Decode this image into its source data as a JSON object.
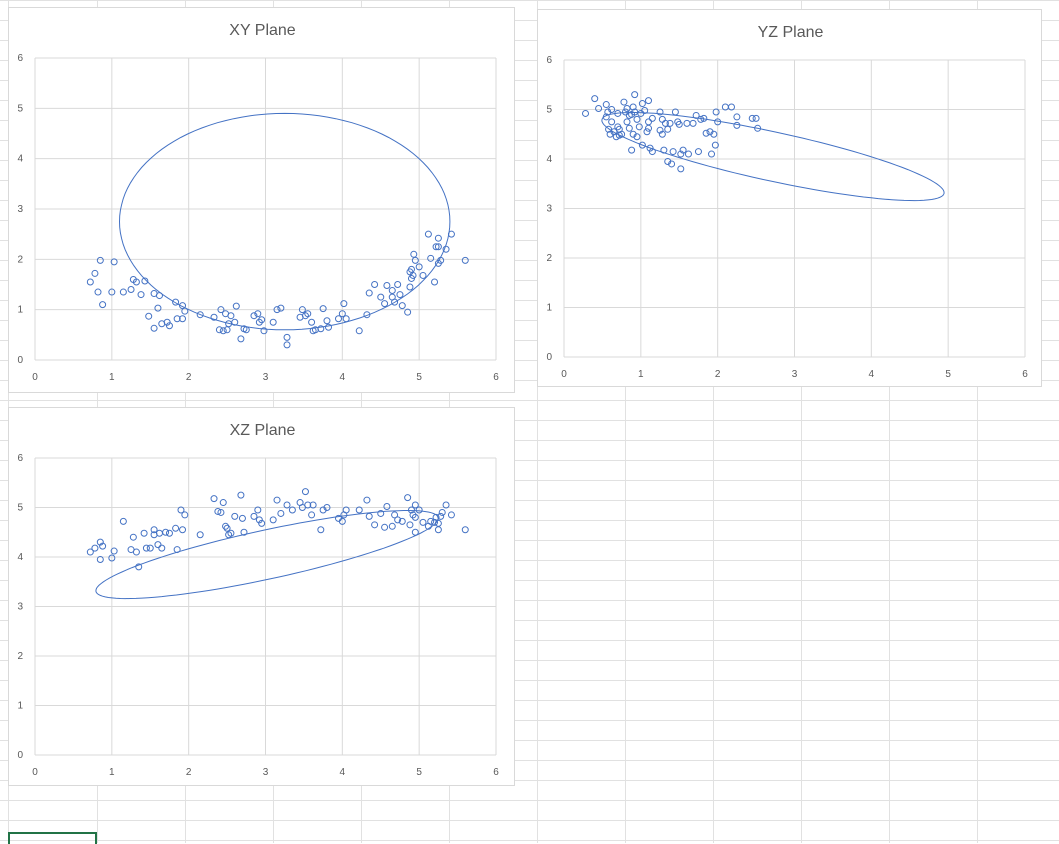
{
  "colors": {
    "series": "#4472c4",
    "grid": "#d9d9d9",
    "text": "#595959",
    "cell_border": "#e1e1e1",
    "selection": "#217346"
  },
  "chart_data": [
    {
      "type": "scatter",
      "title": "XY Plane",
      "xlim": [
        0,
        6
      ],
      "ylim": [
        0,
        6
      ],
      "xticks": [
        "0",
        "1",
        "2",
        "3",
        "4",
        "5",
        "6"
      ],
      "yticks": [
        "0",
        "1",
        "2",
        "3",
        "4",
        "5",
        "6"
      ],
      "grid": true,
      "ellipse": {
        "cx": 3.25,
        "cy": 2.75,
        "a": 2.15,
        "b": 2.15,
        "angle_deg": 3,
        "x_radius": 2.15,
        "y_radius": 2.15
      },
      "ellipse_ry": 2.15,
      "points": [
        [
          0.72,
          1.55
        ],
        [
          0.78,
          1.72
        ],
        [
          0.85,
          1.98
        ],
        [
          0.88,
          1.1
        ],
        [
          0.82,
          1.35
        ],
        [
          1.0,
          1.35
        ],
        [
          1.03,
          1.95
        ],
        [
          1.15,
          1.35
        ],
        [
          1.25,
          1.4
        ],
        [
          1.28,
          1.6
        ],
        [
          1.32,
          1.55
        ],
        [
          1.38,
          1.3
        ],
        [
          1.43,
          1.57
        ],
        [
          1.48,
          0.87
        ],
        [
          1.55,
          1.32
        ],
        [
          1.55,
          0.63
        ],
        [
          1.6,
          1.03
        ],
        [
          1.62,
          1.28
        ],
        [
          1.65,
          0.72
        ],
        [
          1.72,
          0.75
        ],
        [
          1.75,
          0.68
        ],
        [
          1.83,
          1.15
        ],
        [
          1.85,
          0.82
        ],
        [
          1.92,
          1.08
        ],
        [
          1.92,
          0.82
        ],
        [
          1.95,
          0.97
        ],
        [
          2.15,
          0.9
        ],
        [
          2.33,
          0.85
        ],
        [
          2.4,
          0.6
        ],
        [
          2.42,
          1.0
        ],
        [
          2.45,
          0.58
        ],
        [
          2.48,
          0.92
        ],
        [
          2.5,
          0.6
        ],
        [
          2.52,
          0.72
        ],
        [
          2.55,
          0.88
        ],
        [
          2.6,
          0.75
        ],
        [
          2.62,
          1.07
        ],
        [
          2.68,
          0.42
        ],
        [
          2.72,
          0.62
        ],
        [
          2.75,
          0.6
        ],
        [
          2.85,
          0.88
        ],
        [
          2.9,
          0.92
        ],
        [
          2.92,
          0.75
        ],
        [
          2.95,
          0.8
        ],
        [
          2.98,
          0.58
        ],
        [
          3.1,
          0.75
        ],
        [
          3.15,
          1.0
        ],
        [
          3.2,
          1.03
        ],
        [
          3.28,
          0.45
        ],
        [
          3.28,
          0.3
        ],
        [
          3.45,
          0.85
        ],
        [
          3.48,
          1.0
        ],
        [
          3.52,
          0.88
        ],
        [
          3.55,
          0.92
        ],
        [
          3.6,
          0.75
        ],
        [
          3.62,
          0.58
        ],
        [
          3.65,
          0.6
        ],
        [
          3.72,
          0.62
        ],
        [
          3.75,
          1.02
        ],
        [
          3.8,
          0.78
        ],
        [
          3.82,
          0.65
        ],
        [
          3.95,
          0.82
        ],
        [
          4.0,
          0.92
        ],
        [
          4.02,
          1.12
        ],
        [
          4.05,
          0.82
        ],
        [
          4.22,
          0.58
        ],
        [
          4.32,
          0.9
        ],
        [
          4.35,
          1.33
        ],
        [
          4.42,
          1.5
        ],
        [
          4.5,
          1.25
        ],
        [
          4.55,
          1.12
        ],
        [
          4.58,
          1.48
        ],
        [
          4.65,
          1.38
        ],
        [
          4.65,
          1.25
        ],
        [
          4.68,
          1.15
        ],
        [
          4.72,
          1.5
        ],
        [
          4.75,
          1.3
        ],
        [
          4.78,
          1.08
        ],
        [
          4.85,
          0.95
        ],
        [
          4.88,
          1.75
        ],
        [
          4.88,
          1.45
        ],
        [
          4.9,
          1.8
        ],
        [
          4.92,
          1.68
        ],
        [
          4.93,
          2.1
        ],
        [
          4.95,
          1.98
        ],
        [
          5.0,
          1.85
        ],
        [
          5.05,
          1.68
        ],
        [
          5.12,
          2.5
        ],
        [
          5.15,
          2.02
        ],
        [
          5.2,
          1.55
        ],
        [
          5.22,
          2.25
        ],
        [
          5.25,
          1.92
        ],
        [
          5.25,
          2.42
        ],
        [
          5.28,
          1.98
        ],
        [
          5.35,
          2.2
        ],
        [
          5.42,
          2.5
        ],
        [
          5.6,
          1.98
        ],
        [
          4.9,
          1.62
        ],
        [
          5.25,
          2.25
        ]
      ]
    },
    {
      "type": "scatter",
      "title": "YZ Plane",
      "xlim": [
        0,
        6
      ],
      "ylim": [
        0,
        6
      ],
      "xticks": [
        "0",
        "1",
        "2",
        "3",
        "4",
        "5",
        "6"
      ],
      "yticks": [
        "0",
        "1",
        "2",
        "3",
        "4",
        "5",
        "6"
      ],
      "grid": true,
      "ellipse": {
        "cx": 2.72,
        "cy": 4.05,
        "a": 2.35,
        "b": 0.48,
        "angle_deg": -19
      },
      "points": [
        [
          0.28,
          4.92
        ],
        [
          0.4,
          5.22
        ],
        [
          0.45,
          5.02
        ],
        [
          0.55,
          5.1
        ],
        [
          0.55,
          4.85
        ],
        [
          0.57,
          4.95
        ],
        [
          0.58,
          4.6
        ],
        [
          0.6,
          4.5
        ],
        [
          0.62,
          4.75
        ],
        [
          0.62,
          5.0
        ],
        [
          0.65,
          4.55
        ],
        [
          0.68,
          4.45
        ],
        [
          0.7,
          4.92
        ],
        [
          0.72,
          4.6
        ],
        [
          0.72,
          4.48
        ],
        [
          0.75,
          4.5
        ],
        [
          0.78,
          5.15
        ],
        [
          0.8,
          4.95
        ],
        [
          0.82,
          5.02
        ],
        [
          0.82,
          4.75
        ],
        [
          0.85,
          4.88
        ],
        [
          0.85,
          4.62
        ],
        [
          0.88,
          4.9
        ],
        [
          0.88,
          4.18
        ],
        [
          0.9,
          5.05
        ],
        [
          0.9,
          4.5
        ],
        [
          0.92,
          5.3
        ],
        [
          0.92,
          4.95
        ],
        [
          0.95,
          4.8
        ],
        [
          0.95,
          4.45
        ],
        [
          0.98,
          4.65
        ],
        [
          1.0,
          4.92
        ],
        [
          1.02,
          5.12
        ],
        [
          1.02,
          4.28
        ],
        [
          1.05,
          4.98
        ],
        [
          1.08,
          4.55
        ],
        [
          1.1,
          5.18
        ],
        [
          1.1,
          4.75
        ],
        [
          1.12,
          4.22
        ],
        [
          1.15,
          4.82
        ],
        [
          1.15,
          4.15
        ],
        [
          1.25,
          4.95
        ],
        [
          1.28,
          4.8
        ],
        [
          1.28,
          4.5
        ],
        [
          1.3,
          4.18
        ],
        [
          1.32,
          4.72
        ],
        [
          1.35,
          4.6
        ],
        [
          1.35,
          3.95
        ],
        [
          1.38,
          4.72
        ],
        [
          1.4,
          3.9
        ],
        [
          1.42,
          4.15
        ],
        [
          1.45,
          4.95
        ],
        [
          1.48,
          4.75
        ],
        [
          1.5,
          4.7
        ],
        [
          1.52,
          4.1
        ],
        [
          1.52,
          3.8
        ],
        [
          1.55,
          4.18
        ],
        [
          1.6,
          4.72
        ],
        [
          1.62,
          4.1
        ],
        [
          1.68,
          4.72
        ],
        [
          1.72,
          4.88
        ],
        [
          1.75,
          4.15
        ],
        [
          1.78,
          4.8
        ],
        [
          1.82,
          4.82
        ],
        [
          1.9,
          4.55
        ],
        [
          1.92,
          4.1
        ],
        [
          1.95,
          4.5
        ],
        [
          1.97,
          4.28
        ],
        [
          1.98,
          4.95
        ],
        [
          2.0,
          4.75
        ],
        [
          2.1,
          5.05
        ],
        [
          2.18,
          5.05
        ],
        [
          2.25,
          4.68
        ],
        [
          2.25,
          4.85
        ],
        [
          2.45,
          4.82
        ],
        [
          2.5,
          4.82
        ],
        [
          2.52,
          4.62
        ],
        [
          1.85,
          4.52
        ],
        [
          1.1,
          4.62
        ],
        [
          0.7,
          4.65
        ],
        [
          1.25,
          4.58
        ]
      ]
    },
    {
      "type": "scatter",
      "title": "XZ Plane",
      "xlim": [
        0,
        6
      ],
      "ylim": [
        0,
        6
      ],
      "xticks": [
        "0",
        "1",
        "2",
        "3",
        "4",
        "5",
        "6"
      ],
      "yticks": [
        "0",
        "1",
        "2",
        "3",
        "4",
        "5",
        "6"
      ],
      "grid": true,
      "ellipse": {
        "cx": 3.02,
        "cy": 4.05,
        "a": 2.35,
        "b": 0.48,
        "angle_deg": 19
      },
      "points": [
        [
          0.72,
          4.1
        ],
        [
          0.78,
          4.18
        ],
        [
          0.85,
          4.3
        ],
        [
          0.85,
          3.95
        ],
        [
          0.88,
          4.22
        ],
        [
          1.0,
          3.98
        ],
        [
          1.03,
          4.12
        ],
        [
          1.15,
          4.72
        ],
        [
          1.25,
          4.15
        ],
        [
          1.28,
          4.4
        ],
        [
          1.32,
          4.1
        ],
        [
          1.35,
          3.8
        ],
        [
          1.42,
          4.48
        ],
        [
          1.45,
          4.18
        ],
        [
          1.5,
          4.18
        ],
        [
          1.55,
          4.55
        ],
        [
          1.55,
          4.45
        ],
        [
          1.6,
          4.25
        ],
        [
          1.62,
          4.48
        ],
        [
          1.65,
          4.18
        ],
        [
          1.7,
          4.5
        ],
        [
          1.75,
          4.48
        ],
        [
          1.83,
          4.58
        ],
        [
          1.85,
          4.15
        ],
        [
          1.9,
          4.95
        ],
        [
          1.92,
          4.55
        ],
        [
          1.95,
          4.85
        ],
        [
          2.15,
          4.45
        ],
        [
          2.33,
          5.18
        ],
        [
          2.38,
          4.92
        ],
        [
          2.42,
          4.9
        ],
        [
          2.45,
          5.1
        ],
        [
          2.48,
          4.62
        ],
        [
          2.5,
          4.58
        ],
        [
          2.52,
          4.45
        ],
        [
          2.55,
          4.48
        ],
        [
          2.6,
          4.82
        ],
        [
          2.68,
          5.25
        ],
        [
          2.7,
          4.78
        ],
        [
          2.72,
          4.5
        ],
        [
          2.85,
          4.82
        ],
        [
          2.9,
          4.95
        ],
        [
          2.92,
          4.75
        ],
        [
          2.95,
          4.68
        ],
        [
          3.1,
          4.75
        ],
        [
          3.15,
          5.15
        ],
        [
          3.2,
          4.88
        ],
        [
          3.28,
          5.05
        ],
        [
          3.35,
          4.95
        ],
        [
          3.45,
          5.1
        ],
        [
          3.48,
          5.0
        ],
        [
          3.52,
          5.32
        ],
        [
          3.55,
          5.05
        ],
        [
          3.6,
          4.85
        ],
        [
          3.62,
          5.05
        ],
        [
          3.72,
          4.55
        ],
        [
          3.75,
          4.95
        ],
        [
          3.8,
          5.0
        ],
        [
          3.95,
          4.78
        ],
        [
          4.0,
          4.72
        ],
        [
          4.02,
          4.85
        ],
        [
          4.05,
          4.95
        ],
        [
          4.22,
          4.95
        ],
        [
          4.32,
          5.15
        ],
        [
          4.35,
          4.82
        ],
        [
          4.42,
          4.65
        ],
        [
          4.5,
          4.88
        ],
        [
          4.55,
          4.6
        ],
        [
          4.58,
          5.02
        ],
        [
          4.65,
          4.62
        ],
        [
          4.68,
          4.85
        ],
        [
          4.72,
          4.75
        ],
        [
          4.78,
          4.72
        ],
        [
          4.85,
          5.2
        ],
        [
          4.88,
          4.65
        ],
        [
          4.9,
          4.95
        ],
        [
          4.92,
          4.85
        ],
        [
          4.95,
          4.8
        ],
        [
          4.95,
          4.5
        ],
        [
          5.0,
          4.95
        ],
        [
          5.05,
          4.7
        ],
        [
          5.12,
          4.62
        ],
        [
          5.15,
          4.72
        ],
        [
          5.2,
          4.7
        ],
        [
          5.22,
          4.8
        ],
        [
          5.25,
          4.68
        ],
        [
          5.25,
          4.55
        ],
        [
          5.3,
          4.9
        ],
        [
          5.35,
          5.05
        ],
        [
          5.42,
          4.85
        ],
        [
          5.6,
          4.55
        ],
        [
          4.95,
          5.05
        ],
        [
          5.28,
          4.82
        ]
      ]
    }
  ]
}
